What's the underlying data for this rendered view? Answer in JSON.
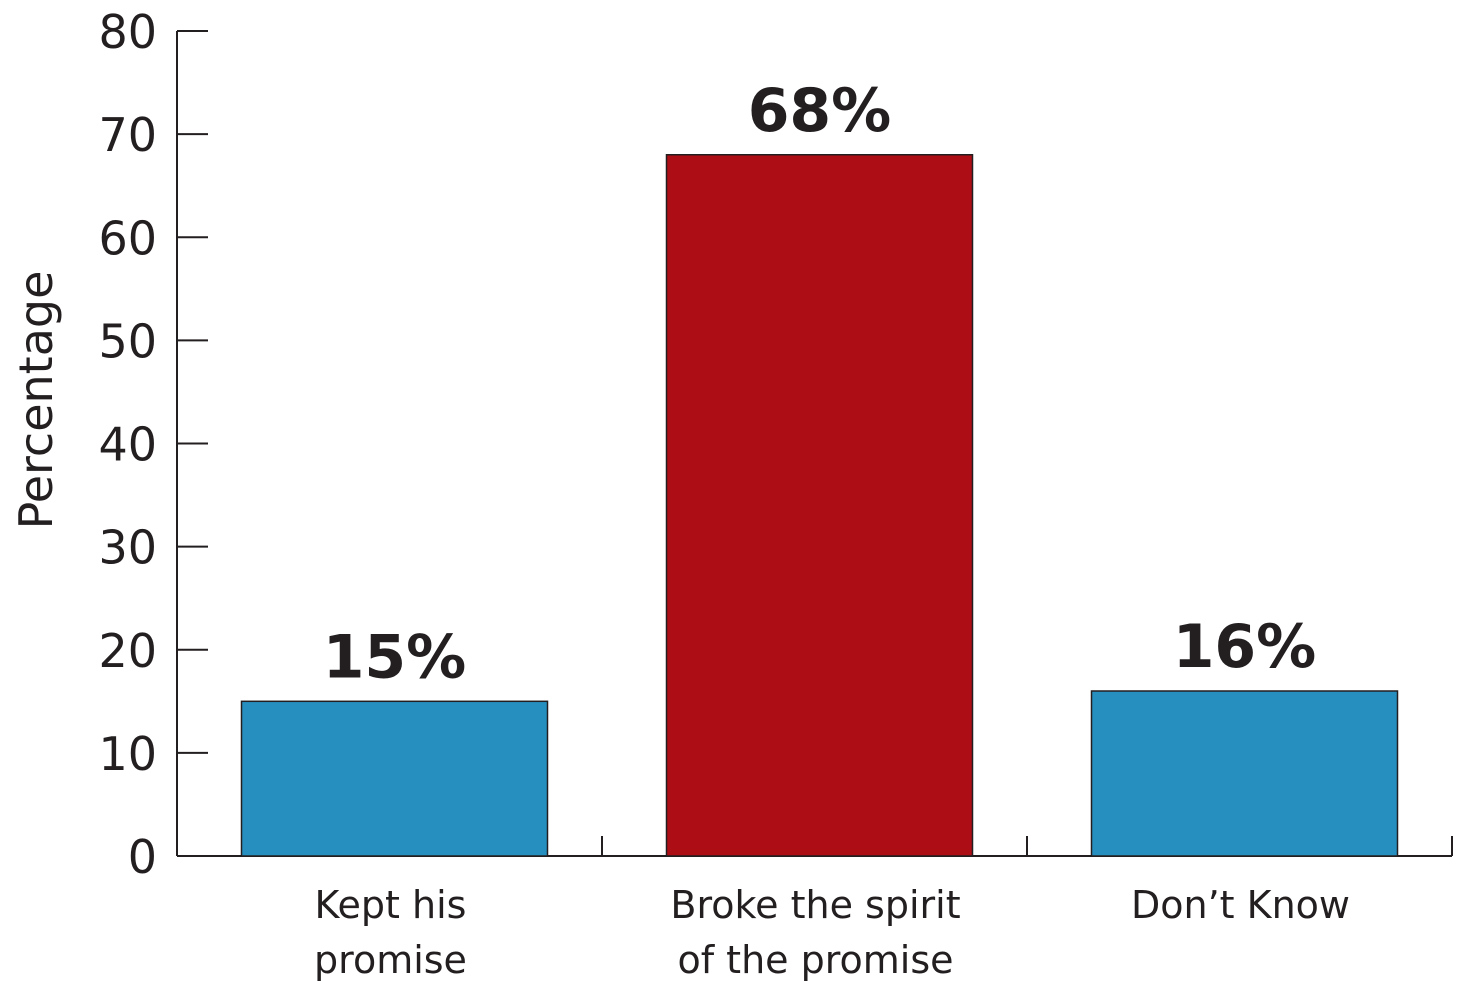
{
  "chart_data": {
    "type": "bar",
    "title": "",
    "xlabel": "",
    "ylabel": "Percentage",
    "ylim": [
      0,
      80
    ],
    "yticks": [
      0,
      10,
      20,
      30,
      40,
      50,
      60,
      70,
      80
    ],
    "grid": false,
    "legend": "none",
    "categories": [
      [
        "Kept his",
        "promise"
      ],
      [
        "Broke the spirit",
        "of the promise"
      ],
      [
        "Don’t Know"
      ]
    ],
    "values": [
      15,
      68,
      16
    ],
    "data_labels": [
      "15%",
      "68%",
      "16%"
    ],
    "bar_colors": [
      "#268fc0",
      "#ad0d14",
      "#268fc0"
    ]
  },
  "colors": {
    "axis": "#231f20",
    "text": "#231f20"
  }
}
